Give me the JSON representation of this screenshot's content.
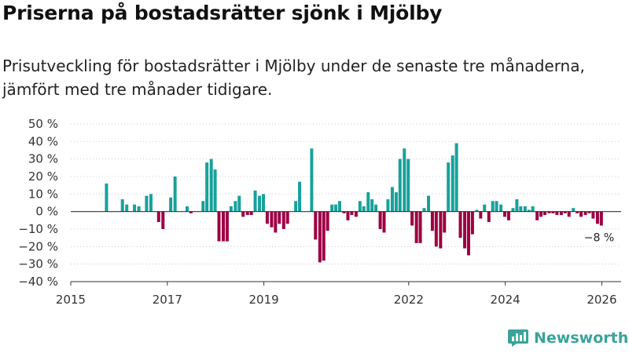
{
  "title": "Priserna på bostadsrätter sjönk i Mjölby",
  "subtitle_lines": [
    "Prisutveckling för bostadsrätter i Mjölby under de senaste tre månaderna,",
    "jämfört med tre månader tidigare."
  ],
  "brand": "Newsworthy",
  "colors": {
    "positive": "#18a19b",
    "negative": "#9c0042",
    "axis": "#333333",
    "grid": "#cccccc"
  },
  "chart_data": {
    "type": "bar",
    "title": "Priserna på bostadsrätter sjönk i Mjölby",
    "subtitle": "Prisutveckling för bostadsrätter i Mjölby under de senaste tre månaderna, jämfört med tre månader tidigare.",
    "x_unit": "year",
    "xlim": [
      2015,
      2026.4
    ],
    "x_ticks": [
      2015,
      2017,
      2019,
      2022,
      2024,
      2026
    ],
    "ylim": [
      -40,
      50
    ],
    "y_ticks": [
      50,
      40,
      30,
      20,
      10,
      0,
      -10,
      -20,
      -30,
      -40
    ],
    "y_tick_labels": [
      "50 %",
      "40 %",
      "30 %",
      "20 %",
      "10 %",
      "0 %",
      "−10 %",
      "−20 %",
      "−30 %",
      "−40 %"
    ],
    "annotation": {
      "text": "−8 %",
      "x": 2025.96,
      "y": -8
    },
    "x": [
      2015.74,
      2016.07,
      2016.16,
      2016.32,
      2016.41,
      2016.57,
      2016.66,
      2016.82,
      2016.91,
      2017.07,
      2017.16,
      2017.41,
      2017.49,
      2017.74,
      2017.82,
      2017.91,
      2017.99,
      2018.07,
      2018.16,
      2018.24,
      2018.32,
      2018.41,
      2018.49,
      2018.57,
      2018.66,
      2018.74,
      2018.82,
      2018.91,
      2018.99,
      2019.07,
      2019.16,
      2019.24,
      2019.32,
      2019.41,
      2019.49,
      2019.66,
      2019.74,
      2019.99,
      2020.07,
      2020.16,
      2020.24,
      2020.32,
      2020.41,
      2020.49,
      2020.57,
      2020.66,
      2020.74,
      2020.82,
      2020.91,
      2020.99,
      2021.07,
      2021.16,
      2021.24,
      2021.32,
      2021.41,
      2021.49,
      2021.57,
      2021.66,
      2021.74,
      2021.82,
      2021.91,
      2021.99,
      2022.07,
      2022.16,
      2022.24,
      2022.32,
      2022.41,
      2022.49,
      2022.57,
      2022.66,
      2022.74,
      2022.82,
      2022.91,
      2022.99,
      2023.07,
      2023.16,
      2023.24,
      2023.32,
      2023.41,
      2023.49,
      2023.57,
      2023.66,
      2023.74,
      2023.82,
      2023.91,
      2023.99,
      2024.07,
      2024.16,
      2024.24,
      2024.32,
      2024.41,
      2024.49,
      2024.57,
      2024.66,
      2024.74,
      2024.82,
      2024.91,
      2024.99,
      2025.07,
      2025.16,
      2025.24,
      2025.32,
      2025.41,
      2025.49,
      2025.57,
      2025.66,
      2025.74,
      2025.82,
      2025.91,
      2025.99
    ],
    "values": [
      16,
      7,
      4,
      4,
      3,
      9,
      10,
      -6,
      -10,
      8,
      20,
      3,
      -1,
      6,
      28,
      30,
      24,
      -17,
      -17,
      -17,
      3,
      6,
      9,
      -3,
      -2,
      -2,
      12,
      9,
      10,
      -7,
      -9,
      -12,
      -7,
      -10,
      -7,
      6,
      17,
      36,
      -16,
      -29,
      -28,
      -11,
      4,
      4,
      6,
      -1,
      -5,
      -2,
      -3,
      6,
      3,
      11,
      7,
      4,
      -10,
      -12,
      7,
      14,
      11,
      30,
      36,
      30,
      -8,
      -18,
      -18,
      2,
      9,
      -11,
      -20,
      -21,
      -12,
      28,
      32,
      39,
      -15,
      -21,
      -25,
      -13,
      1,
      -4,
      4,
      -6,
      6,
      6,
      4,
      -3,
      -5,
      2,
      7,
      3,
      3,
      1,
      3,
      -5,
      -3,
      -2,
      -1,
      -1,
      -2,
      -2,
      -1,
      -3,
      2,
      -1,
      -3,
      -2,
      -1,
      -4,
      -7,
      -8
    ]
  }
}
